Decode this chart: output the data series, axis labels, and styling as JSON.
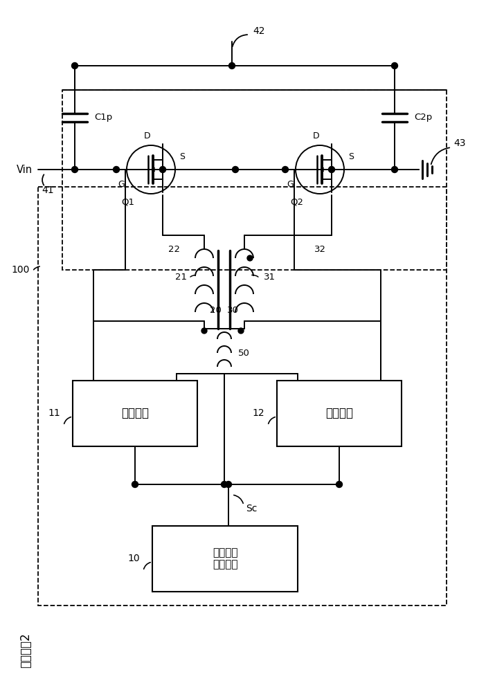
{
  "bg_color": "#ffffff",
  "fig_width": 7.02,
  "fig_height": 10.0,
  "label_title": "实施方式2",
  "label_42": "42",
  "label_43": "43",
  "label_41": "41",
  "label_Vin": "Vin",
  "label_C1p": "C1p",
  "label_C2p": "C2p",
  "label_Q1": "Q1",
  "label_Q2": "Q2",
  "label_D": "D",
  "label_S": "S",
  "label_G": "G",
  "label_11": "11",
  "label_12": "12",
  "label_10": "10",
  "label_21": "21",
  "label_22": "22",
  "label_31": "31",
  "label_32": "32",
  "label_20": "20",
  "label_30": "30",
  "label_50": "50",
  "label_Sc": "Sc",
  "label_100": "100",
  "label_drive": "驱动电路",
  "label_control": "控制信号\n产生电路"
}
